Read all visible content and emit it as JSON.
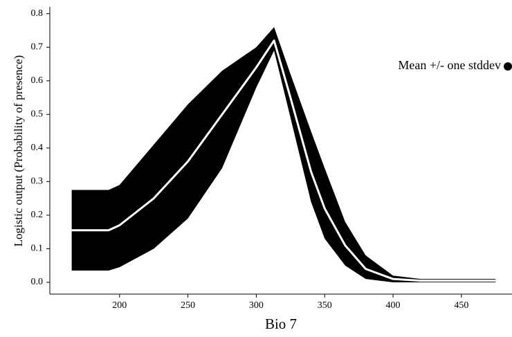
{
  "chart_data": {
    "type": "band_line",
    "x_label": "Bio 7",
    "y_label": "Logistic output (Probability of presence)",
    "x": [
      165,
      192,
      200,
      225,
      250,
      275,
      300,
      313,
      325,
      340,
      350,
      365,
      380,
      400,
      420,
      475
    ],
    "series": [
      {
        "name": "Mean +/- one stddev",
        "color": "#000000",
        "line_color": "#ffffff",
        "values": [
          0.155,
          0.155,
          0.17,
          0.25,
          0.36,
          0.5,
          0.64,
          0.72,
          0.55,
          0.33,
          0.22,
          0.11,
          0.04,
          0.01,
          0.005,
          0.005
        ],
        "upper": [
          0.275,
          0.275,
          0.29,
          0.41,
          0.53,
          0.63,
          0.7,
          0.76,
          0.62,
          0.45,
          0.34,
          0.18,
          0.08,
          0.02,
          0.01,
          0.01
        ],
        "lower": [
          0.035,
          0.035,
          0.045,
          0.1,
          0.19,
          0.34,
          0.58,
          0.69,
          0.49,
          0.24,
          0.13,
          0.05,
          0.01,
          0.0,
          0.0,
          0.0
        ]
      }
    ],
    "xlim": [
      149,
      487
    ],
    "ylim": [
      -0.035,
      0.82
    ],
    "xticks": [
      200,
      250,
      300,
      350,
      400,
      450
    ],
    "yticks": [
      {
        "value": 0,
        "label": "0.0"
      },
      0.1,
      0.2,
      0.3,
      0.4,
      0.5,
      0.6,
      0.7,
      0.8
    ],
    "legend": "upper right"
  }
}
